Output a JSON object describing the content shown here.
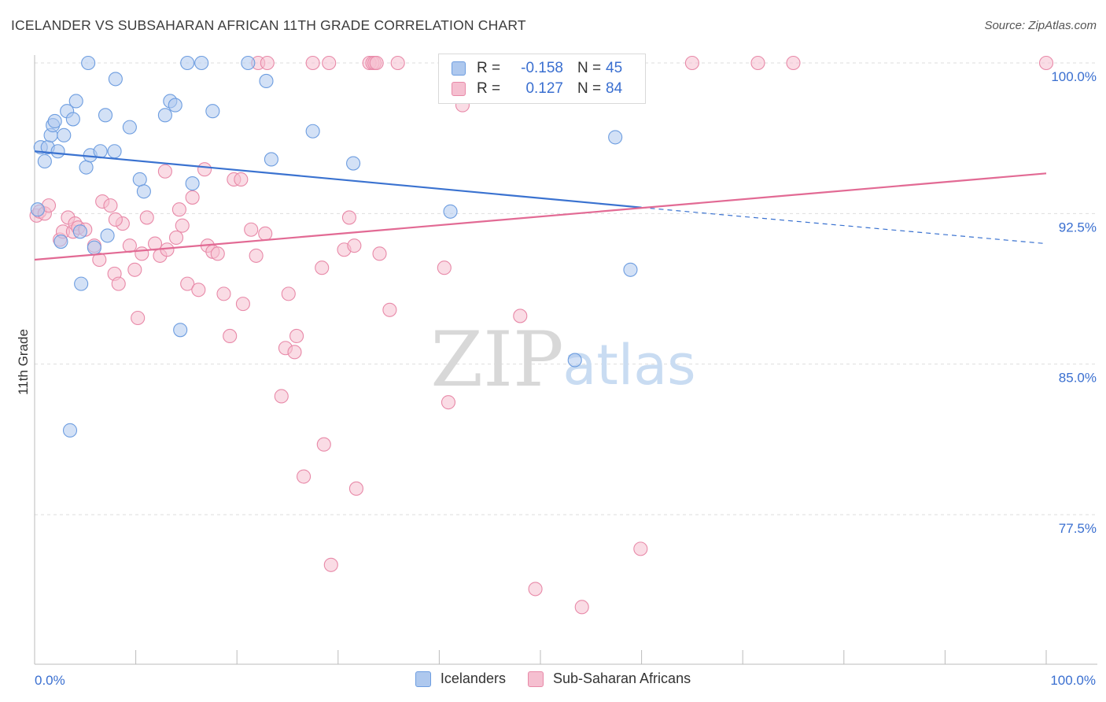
{
  "title": "ICELANDER VS SUBSAHARAN AFRICAN 11TH GRADE CORRELATION CHART",
  "source": "Source: ZipAtlas.com",
  "watermark": {
    "zip": "ZIP",
    "atlas": "atlas"
  },
  "legend_top": [
    {
      "r_label": "R =",
      "r_value": "-0.158",
      "n_label": "N =",
      "n_value": "45"
    },
    {
      "r_label": "R =",
      "r_value": "0.127",
      "n_label": "N =",
      "n_value": "84"
    }
  ],
  "legend_bottom": [
    {
      "label": "Icelanders"
    },
    {
      "label": "Sub-Saharan Africans"
    }
  ],
  "colors": {
    "blue": "#6d9de0",
    "blue_fill": "#aec8ee",
    "blue_line": "#3a72d0",
    "pink": "#e889a8",
    "pink_fill": "#f5bfd0",
    "pink_line": "#e26a94",
    "axis_tick_text": "#3a6fd0",
    "grid": "#dddddd"
  },
  "chart_data": {
    "type": "scatter",
    "title": "ICELANDER VS SUBSAHARAN AFRICAN 11TH GRADE CORRELATION CHART",
    "xlabel": "",
    "ylabel": "11th Grade",
    "xlim": [
      0,
      100
    ],
    "ylim": [
      71.5,
      101.2
    ],
    "x_tick_labels": [
      "0.0%",
      "100.0%"
    ],
    "y_ticks": [
      77.5,
      85.0,
      92.5,
      100.0
    ],
    "y_tick_labels": [
      "77.5%",
      "85.0%",
      "92.5%",
      "100.0%"
    ],
    "grid": "horizontal dashed",
    "legend_position": "top-center",
    "series": [
      {
        "name": "Icelanders",
        "r": -0.158,
        "n": 45,
        "trend": {
          "x0": 0,
          "y0": 95.6,
          "x1": 60,
          "y1": 92.8,
          "dashed_to_x": 100,
          "dashed_to_y": 91.0
        },
        "points": [
          [
            0.3,
            92.7
          ],
          [
            0.6,
            95.8
          ],
          [
            1.0,
            95.1
          ],
          [
            1.3,
            95.8
          ],
          [
            1.6,
            96.4
          ],
          [
            1.8,
            96.9
          ],
          [
            2.0,
            97.1
          ],
          [
            2.3,
            95.6
          ],
          [
            2.6,
            91.1
          ],
          [
            2.9,
            96.4
          ],
          [
            3.2,
            97.6
          ],
          [
            3.8,
            97.2
          ],
          [
            4.1,
            98.1
          ],
          [
            4.5,
            91.6
          ],
          [
            4.6,
            89.0
          ],
          [
            5.1,
            94.8
          ],
          [
            5.3,
            100.0
          ],
          [
            5.5,
            95.4
          ],
          [
            5.9,
            90.8
          ],
          [
            6.5,
            95.6
          ],
          [
            7.0,
            97.4
          ],
          [
            7.2,
            91.4
          ],
          [
            7.9,
            95.6
          ],
          [
            8.0,
            99.2
          ],
          [
            9.4,
            96.8
          ],
          [
            10.4,
            94.2
          ],
          [
            10.8,
            93.6
          ],
          [
            12.9,
            97.4
          ],
          [
            13.4,
            98.1
          ],
          [
            13.9,
            97.9
          ],
          [
            14.4,
            86.7
          ],
          [
            15.6,
            94.0
          ],
          [
            15.1,
            100.0
          ],
          [
            16.5,
            100.0
          ],
          [
            17.6,
            97.6
          ],
          [
            21.1,
            100.0
          ],
          [
            22.9,
            99.1
          ],
          [
            23.4,
            95.2
          ],
          [
            27.5,
            96.6
          ],
          [
            31.5,
            95.0
          ],
          [
            41.1,
            92.6
          ],
          [
            53.4,
            85.2
          ],
          [
            57.4,
            96.3
          ],
          [
            58.9,
            89.7
          ],
          [
            3.5,
            81.7
          ]
        ]
      },
      {
        "name": "Sub-Saharan Africans",
        "r": 0.127,
        "n": 84,
        "trend": {
          "x0": 0,
          "y0": 90.2,
          "x1": 100,
          "y1": 94.5
        },
        "points": [
          [
            0.2,
            92.4
          ],
          [
            0.5,
            92.6
          ],
          [
            1.0,
            92.5
          ],
          [
            1.4,
            92.9
          ],
          [
            2.5,
            91.2
          ],
          [
            2.8,
            91.6
          ],
          [
            3.3,
            92.3
          ],
          [
            3.8,
            91.6
          ],
          [
            4.0,
            92.0
          ],
          [
            4.3,
            91.8
          ],
          [
            5.0,
            91.7
          ],
          [
            5.9,
            90.9
          ],
          [
            6.4,
            90.2
          ],
          [
            6.7,
            93.1
          ],
          [
            7.5,
            92.9
          ],
          [
            7.9,
            89.5
          ],
          [
            8.3,
            89.0
          ],
          [
            8.7,
            92.0
          ],
          [
            9.4,
            90.9
          ],
          [
            9.9,
            89.7
          ],
          [
            10.2,
            87.3
          ],
          [
            10.6,
            90.5
          ],
          [
            11.1,
            92.3
          ],
          [
            11.9,
            91.0
          ],
          [
            12.4,
            90.4
          ],
          [
            12.9,
            94.6
          ],
          [
            13.1,
            90.7
          ],
          [
            14.0,
            91.3
          ],
          [
            14.3,
            92.7
          ],
          [
            14.6,
            91.9
          ],
          [
            15.1,
            89.0
          ],
          [
            15.6,
            93.3
          ],
          [
            16.2,
            88.7
          ],
          [
            16.8,
            94.7
          ],
          [
            17.1,
            90.9
          ],
          [
            17.6,
            90.6
          ],
          [
            18.1,
            90.5
          ],
          [
            18.7,
            88.5
          ],
          [
            19.3,
            86.4
          ],
          [
            19.7,
            94.2
          ],
          [
            20.4,
            94.2
          ],
          [
            20.6,
            88.0
          ],
          [
            21.4,
            91.7
          ],
          [
            21.9,
            90.4
          ],
          [
            22.8,
            91.5
          ],
          [
            22.1,
            100.0
          ],
          [
            23.0,
            100.0
          ],
          [
            24.4,
            83.4
          ],
          [
            24.8,
            85.8
          ],
          [
            25.1,
            88.5
          ],
          [
            25.7,
            85.6
          ],
          [
            25.9,
            86.4
          ],
          [
            26.6,
            79.4
          ],
          [
            27.5,
            100.0
          ],
          [
            28.4,
            89.8
          ],
          [
            28.6,
            81.0
          ],
          [
            29.1,
            100.0
          ],
          [
            29.3,
            75.0
          ],
          [
            30.6,
            90.7
          ],
          [
            31.1,
            92.3
          ],
          [
            31.6,
            90.9
          ],
          [
            31.8,
            78.8
          ],
          [
            33.1,
            100.0
          ],
          [
            33.4,
            100.0
          ],
          [
            33.6,
            100.0
          ],
          [
            33.8,
            100.0
          ],
          [
            34.1,
            90.5
          ],
          [
            35.1,
            87.7
          ],
          [
            35.9,
            100.0
          ],
          [
            40.5,
            89.8
          ],
          [
            40.9,
            83.1
          ],
          [
            42.0,
            99.8
          ],
          [
            42.3,
            97.9
          ],
          [
            47.2,
            99.1
          ],
          [
            48.0,
            87.4
          ],
          [
            49.5,
            73.8
          ],
          [
            52.0,
            100.0
          ],
          [
            54.1,
            72.9
          ],
          [
            59.9,
            75.8
          ],
          [
            65.0,
            100.0
          ],
          [
            71.5,
            100.0
          ],
          [
            75.0,
            100.0
          ],
          [
            100.0,
            100.0
          ],
          [
            8.0,
            92.2
          ]
        ]
      }
    ]
  }
}
